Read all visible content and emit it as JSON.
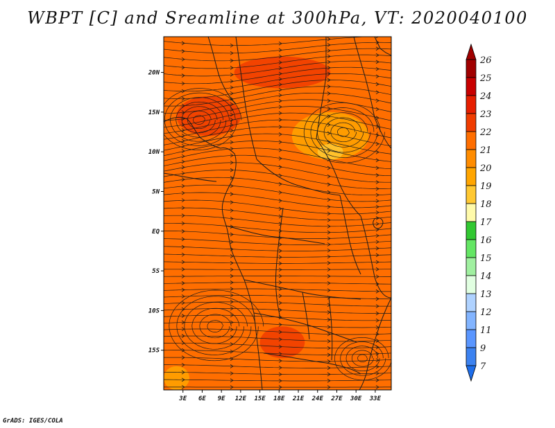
{
  "title": "WBPT [C] and Sreamline at 300hPa, VT: 2020040100",
  "footer": "GrADS: IGES/COLA",
  "map": {
    "lon_range": [
      0,
      35.5
    ],
    "lat_range": [
      -20,
      24.5
    ],
    "lat_ticks": [
      {
        "value": 20,
        "label": "20N"
      },
      {
        "value": 15,
        "label": "15N"
      },
      {
        "value": 10,
        "label": "10N"
      },
      {
        "value": 5,
        "label": "5N"
      },
      {
        "value": 0,
        "label": "EQ"
      },
      {
        "value": -5,
        "label": "5S"
      },
      {
        "value": -10,
        "label": "10S"
      },
      {
        "value": -15,
        "label": "15S"
      }
    ],
    "lon_ticks": [
      {
        "value": 3,
        "label": "3E"
      },
      {
        "value": 6,
        "label": "6E"
      },
      {
        "value": 9,
        "label": "9E"
      },
      {
        "value": 12,
        "label": "12E"
      },
      {
        "value": 15,
        "label": "15E"
      },
      {
        "value": 18,
        "label": "18E"
      },
      {
        "value": 21,
        "label": "21E"
      },
      {
        "value": 24,
        "label": "24E"
      },
      {
        "value": 27,
        "label": "27E"
      },
      {
        "value": 30,
        "label": "30E"
      },
      {
        "value": 33,
        "label": "33E"
      }
    ],
    "base_color": "#ff6e00",
    "warm_color": "#f03c00",
    "cool_color": "#ffa500",
    "coolest_color": "#ffc832",
    "line_color": "#1a1a1a"
  },
  "colorbar": {
    "levels": [
      {
        "label": "26",
        "color": "#a00000"
      },
      {
        "label": "25",
        "color": "#c80000"
      },
      {
        "label": "24",
        "color": "#e61e00"
      },
      {
        "label": "23",
        "color": "#f03c00"
      },
      {
        "label": "22",
        "color": "#ff6e00"
      },
      {
        "label": "21",
        "color": "#ff8c00"
      },
      {
        "label": "20",
        "color": "#ffa500"
      },
      {
        "label": "19",
        "color": "#ffc832"
      },
      {
        "label": "18",
        "color": "#fffaaa"
      },
      {
        "label": "17",
        "color": "#32c832"
      },
      {
        "label": "16",
        "color": "#64e664"
      },
      {
        "label": "15",
        "color": "#a0f0a0"
      },
      {
        "label": "14",
        "color": "#e1ffe1"
      },
      {
        "label": "13",
        "color": "#afd2ff"
      },
      {
        "label": "12",
        "color": "#82b4ff"
      },
      {
        "label": "11",
        "color": "#5a96ff"
      },
      {
        "label": "9",
        "color": "#3c82f0"
      },
      {
        "label": "7",
        "color": "#1e6eeb"
      }
    ],
    "bottom_color": "#1e6eeb"
  },
  "chart_data": {
    "type": "heatmap",
    "title": "WBPT [C] and Sreamline at 300hPa, VT: 2020040100",
    "variable": "WBPT [C]",
    "level": "300hPa",
    "valid_time": "2020040100",
    "color_levels": [
      7,
      9,
      11,
      12,
      13,
      14,
      15,
      16,
      17,
      18,
      19,
      20,
      21,
      22,
      23,
      24,
      25,
      26
    ],
    "xlim": [
      0,
      35.5
    ],
    "ylim": [
      -20,
      24.5
    ],
    "dominant_range": [
      22,
      23
    ],
    "regions": [
      {
        "value": 23,
        "lon": [
          2,
          12
        ],
        "lat": [
          12,
          17
        ]
      },
      {
        "value": 23,
        "lon": [
          11,
          26
        ],
        "lat": [
          18,
          22
        ]
      },
      {
        "value": 23,
        "lon": [
          15,
          22
        ],
        "lat": [
          -16,
          -12
        ]
      },
      {
        "value": 20,
        "lon": [
          20,
          32
        ],
        "lat": [
          9,
          15
        ]
      },
      {
        "value": 20,
        "lon": [
          0,
          4
        ],
        "lat": [
          -20,
          -17
        ]
      },
      {
        "value": 19,
        "lon": [
          24,
          28
        ],
        "lat": [
          9,
          11
        ]
      }
    ]
  }
}
